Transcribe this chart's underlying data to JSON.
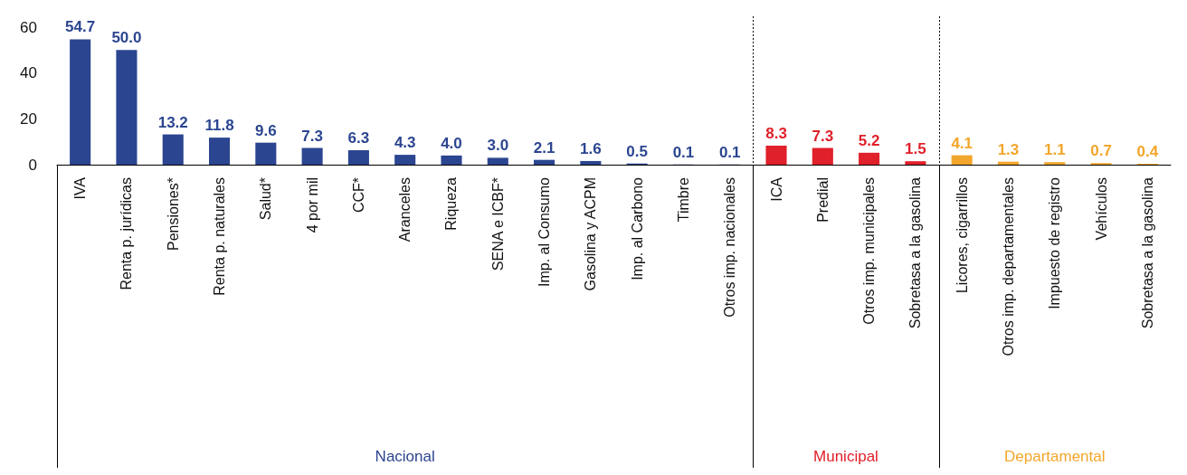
{
  "chart_data": {
    "type": "bar",
    "categories": [
      "IVA",
      "Renta p. jurídicas",
      "Pensiones*",
      "Renta p. naturales",
      "Salud*",
      "4 por mil",
      "CCF*",
      "Aranceles",
      "Riqueza",
      "SENA e ICBF*",
      "Imp. al Consumo",
      "Gasolina y ACPM",
      "Imp. al Carbono",
      "Timbre",
      "Otros imp. nacionales",
      "ICA",
      "Predial",
      "Otros imp. municipales",
      "Sobretasa a la gasolina",
      "Licores, cigarrillos",
      "Otros imp. departamentales",
      "Impuesto de registro",
      "Vehículos",
      "Sobretasa a la gasolina"
    ],
    "series": [
      {
        "name": "Nacional",
        "color": "#2b4590",
        "values": [
          54.7,
          50.0,
          13.2,
          11.8,
          9.6,
          7.3,
          6.3,
          4.3,
          4.0,
          3.0,
          2.1,
          1.6,
          0.5,
          0.1,
          0.1,
          null,
          null,
          null,
          null,
          null,
          null,
          null,
          null,
          null
        ],
        "value_labels": [
          "54.7",
          "50.0",
          "13.2",
          "11.8",
          "9.6",
          "7.3",
          "6.3",
          "4.3",
          "4.0",
          "3.0",
          "2.1",
          "1.6",
          "0.5",
          "0.1",
          "0.1",
          null,
          null,
          null,
          null,
          null,
          null,
          null,
          null,
          null
        ]
      },
      {
        "name": "Municipal",
        "color": "#e0202a",
        "values": [
          null,
          null,
          null,
          null,
          null,
          null,
          null,
          null,
          null,
          null,
          null,
          null,
          null,
          null,
          null,
          8.3,
          7.3,
          5.2,
          1.5,
          null,
          null,
          null,
          null,
          null
        ],
        "value_labels": [
          null,
          null,
          null,
          null,
          null,
          null,
          null,
          null,
          null,
          null,
          null,
          null,
          null,
          null,
          null,
          "8.3",
          "7.3",
          "5.2",
          "1.5",
          null,
          null,
          null,
          null,
          null
        ]
      },
      {
        "name": "Departamental",
        "color": "#f2a62b",
        "values": [
          null,
          null,
          null,
          null,
          null,
          null,
          null,
          null,
          null,
          null,
          null,
          null,
          null,
          null,
          null,
          null,
          null,
          null,
          null,
          4.1,
          1.3,
          1.1,
          0.7,
          0.4
        ],
        "value_labels": [
          null,
          null,
          null,
          null,
          null,
          null,
          null,
          null,
          null,
          null,
          null,
          null,
          null,
          null,
          null,
          null,
          null,
          null,
          null,
          "4.1",
          "1.3",
          "1.1",
          "0.7",
          "0.4"
        ]
      }
    ],
    "ylim": [
      0,
      60
    ],
    "yticks": [
      0,
      20,
      40,
      60
    ],
    "grid": false,
    "legend": false
  }
}
